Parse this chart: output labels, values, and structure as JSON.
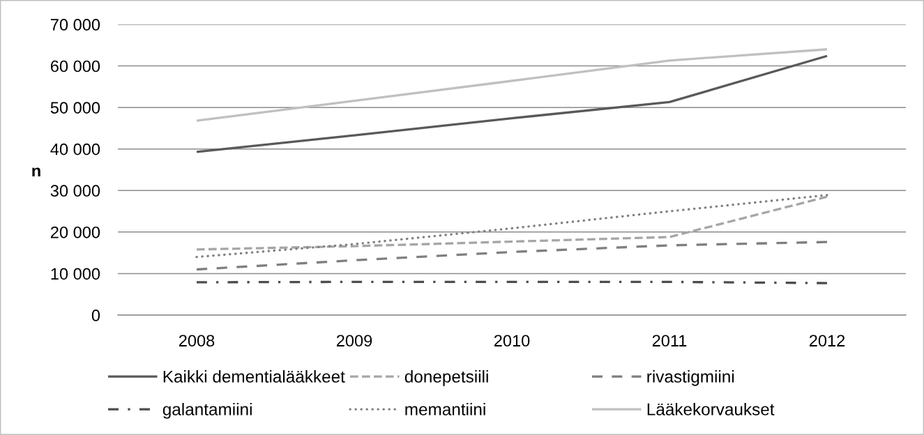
{
  "chart_data": {
    "type": "line",
    "categories": [
      "2008",
      "2009",
      "2010",
      "2011",
      "2012"
    ],
    "ylabel": "n",
    "ylim": [
      0,
      70000
    ],
    "yticks": [
      0,
      {
        "value": 10000,
        "label": "10 000"
      },
      {
        "value": 20000,
        "label": "20 000"
      },
      {
        "value": 30000,
        "label": "30 000"
      },
      {
        "value": 40000,
        "label": "40 000"
      },
      {
        "value": 50000,
        "label": "50 000"
      },
      {
        "value": 60000,
        "label": "60 000"
      },
      {
        "value": 70000,
        "label": "70 000"
      }
    ],
    "grid": "y",
    "legend": "bottom",
    "series": [
      {
        "name": "Kaikki dementialääkkeet",
        "color": "#595959",
        "line_style": "solid",
        "values": [
          39300,
          43300,
          47400,
          51300,
          62400
        ]
      },
      {
        "name": "donepetsiili",
        "color": "#a6a6a6",
        "line_style": "dashed",
        "values": [
          15800,
          16600,
          17700,
          18800,
          28500
        ]
      },
      {
        "name": "rivastigmiini",
        "color": "#7f7f7f",
        "line_style": "longdash",
        "values": [
          11000,
          13200,
          15200,
          16800,
          17600
        ]
      },
      {
        "name": "galantamiini",
        "color": "#4d4d4d",
        "line_style": "dashdot",
        "values": [
          7900,
          8000,
          8000,
          8000,
          7700
        ]
      },
      {
        "name": "memantiini",
        "color": "#808080",
        "line_style": "dotted",
        "values": [
          14000,
          17100,
          20900,
          25000,
          28900
        ]
      },
      {
        "name": "Lääkekorvaukset",
        "color": "#c0c0c0",
        "line_style": "solid",
        "values": [
          46800,
          51600,
          56400,
          61300,
          64000
        ]
      }
    ]
  }
}
